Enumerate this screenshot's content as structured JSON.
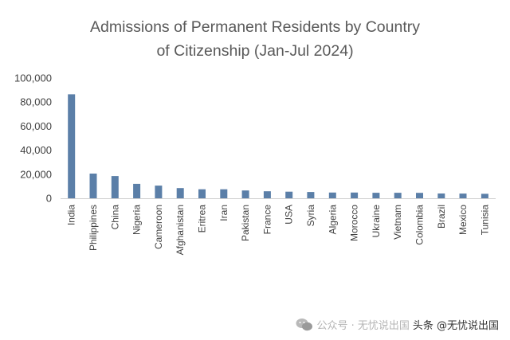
{
  "chart_data": {
    "type": "bar",
    "title_lines": [
      "Admissions of Permanent Residents by Country",
      "of Citizenship (Jan-Jul 2024)"
    ],
    "xlabel": "",
    "ylabel": "",
    "ylim": [
      0,
      100000
    ],
    "yticks": [
      "100,000",
      "80,000",
      "60,000",
      "40,000",
      "20,000",
      "0"
    ],
    "ytick_values": [
      100000,
      80000,
      60000,
      40000,
      20000,
      0
    ],
    "categories": [
      "India",
      "Philippines",
      "China",
      "Nigeria",
      "Cameroon",
      "Afghanistan",
      "Eritrea",
      "Iran",
      "Pakistan",
      "France",
      "USA",
      "Syria",
      "Algeria",
      "Morocco",
      "Ukraine",
      "Vietnam",
      "Colombia",
      "Brazil",
      "Mexico",
      "Tunisia"
    ],
    "values": [
      86500,
      20500,
      18500,
      12000,
      10500,
      8500,
      7500,
      7500,
      6500,
      5800,
      5500,
      5200,
      4800,
      4800,
      4600,
      4600,
      4500,
      4000,
      3900,
      3700
    ],
    "bar_color": "#5b7fa8",
    "axis_color": "#d0d0d0",
    "grid": false,
    "legend": "none"
  },
  "watermark": {
    "faded_text": "公众号 · 无忧说出国",
    "text": "头条 @无忧说出国",
    "icon": "wechat-icon"
  }
}
